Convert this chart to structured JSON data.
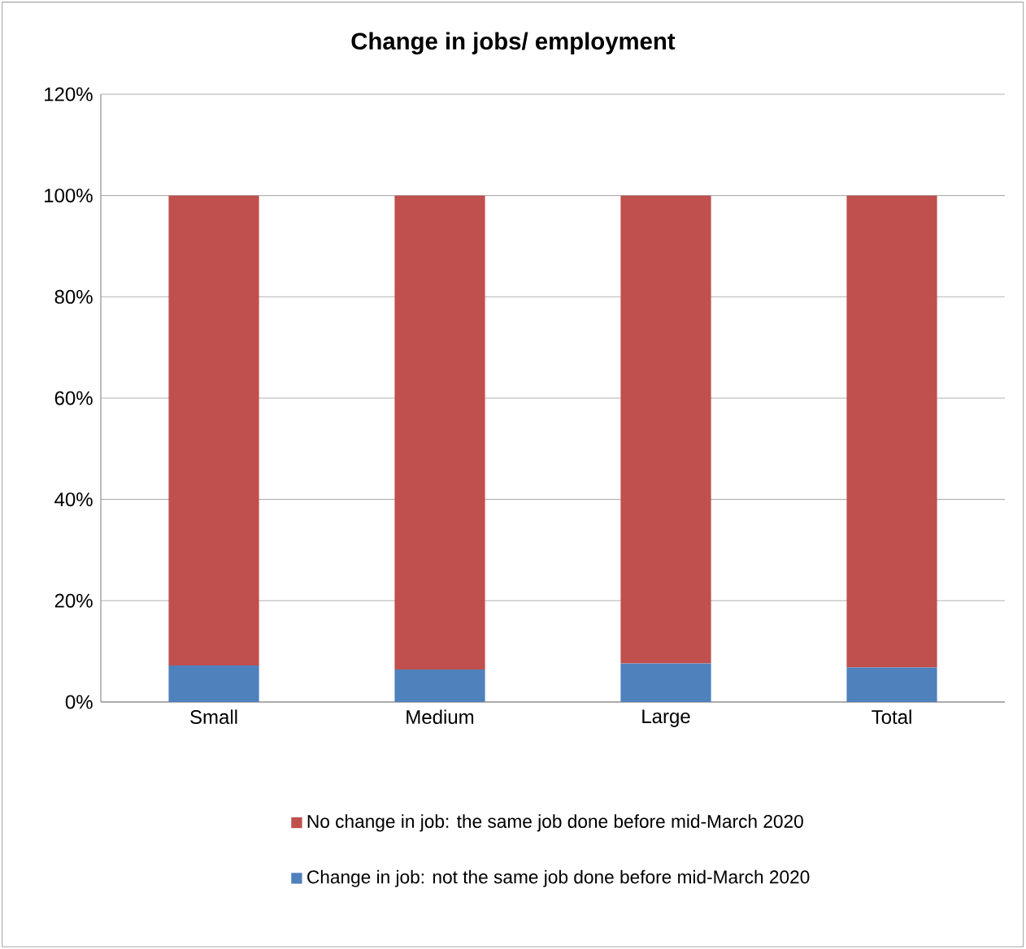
{
  "chart_data": {
    "type": "bar",
    "stacked": true,
    "title": "Change in jobs/ employment",
    "categories": [
      "Small",
      "Medium",
      "Large",
      "Total"
    ],
    "series": [
      {
        "name": "Change in job: not the same job done before mid-March 2020",
        "color": "#4f81bd",
        "values": [
          7.2,
          6.4,
          7.6,
          6.8
        ]
      },
      {
        "name": "No change in job: the same job done before mid-March 2020",
        "color": "#c0504d",
        "values": [
          92.8,
          93.6,
          92.4,
          93.2
        ]
      }
    ],
    "ylim": [
      0,
      120
    ],
    "yticks": [
      {
        "value": 0,
        "label": "0%"
      },
      {
        "value": 20,
        "label": "20%"
      },
      {
        "value": 40,
        "label": "40%"
      },
      {
        "value": 60,
        "label": "60%"
      },
      {
        "value": 80,
        "label": "80%"
      },
      {
        "value": 100,
        "label": "100%"
      },
      {
        "value": 120,
        "label": "120%"
      }
    ],
    "grid": "y",
    "legend": "bottom"
  }
}
